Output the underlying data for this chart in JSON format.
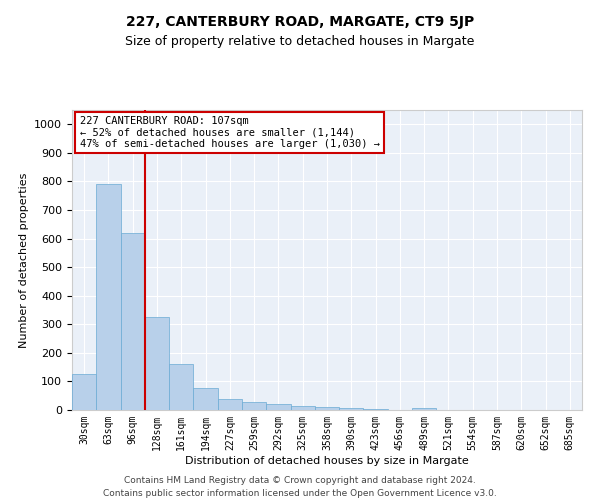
{
  "title": "227, CANTERBURY ROAD, MARGATE, CT9 5JP",
  "subtitle": "Size of property relative to detached houses in Margate",
  "xlabel": "Distribution of detached houses by size in Margate",
  "ylabel": "Number of detached properties",
  "annotation_line1": "227 CANTERBURY ROAD: 107sqm",
  "annotation_line2": "← 52% of detached houses are smaller (1,144)",
  "annotation_line3": "47% of semi-detached houses are larger (1,030) →",
  "footer_line1": "Contains HM Land Registry data © Crown copyright and database right 2024.",
  "footer_line2": "Contains public sector information licensed under the Open Government Licence v3.0.",
  "bin_labels": [
    "30sqm",
    "63sqm",
    "96sqm",
    "128sqm",
    "161sqm",
    "194sqm",
    "227sqm",
    "259sqm",
    "292sqm",
    "325sqm",
    "358sqm",
    "390sqm",
    "423sqm",
    "456sqm",
    "489sqm",
    "521sqm",
    "554sqm",
    "587sqm",
    "620sqm",
    "652sqm",
    "685sqm"
  ],
  "bar_values": [
    125,
    790,
    620,
    325,
    160,
    78,
    40,
    27,
    20,
    15,
    12,
    8,
    5,
    0,
    8,
    0,
    0,
    0,
    0,
    0,
    0
  ],
  "bar_color": "#b8d0ea",
  "bar_edge_color": "#6aaad4",
  "background_color": "#eaf0f8",
  "grid_color": "#ffffff",
  "red_line_x": 2.5,
  "red_line_color": "#cc0000",
  "annotation_box_color": "#cc0000",
  "ylim": [
    0,
    1050
  ],
  "yticks": [
    0,
    100,
    200,
    300,
    400,
    500,
    600,
    700,
    800,
    900,
    1000
  ],
  "title_fontsize": 10,
  "subtitle_fontsize": 9,
  "ylabel_fontsize": 8,
  "xlabel_fontsize": 8,
  "tick_fontsize": 8,
  "annotation_fontsize": 7.5,
  "footer_fontsize": 6.5
}
